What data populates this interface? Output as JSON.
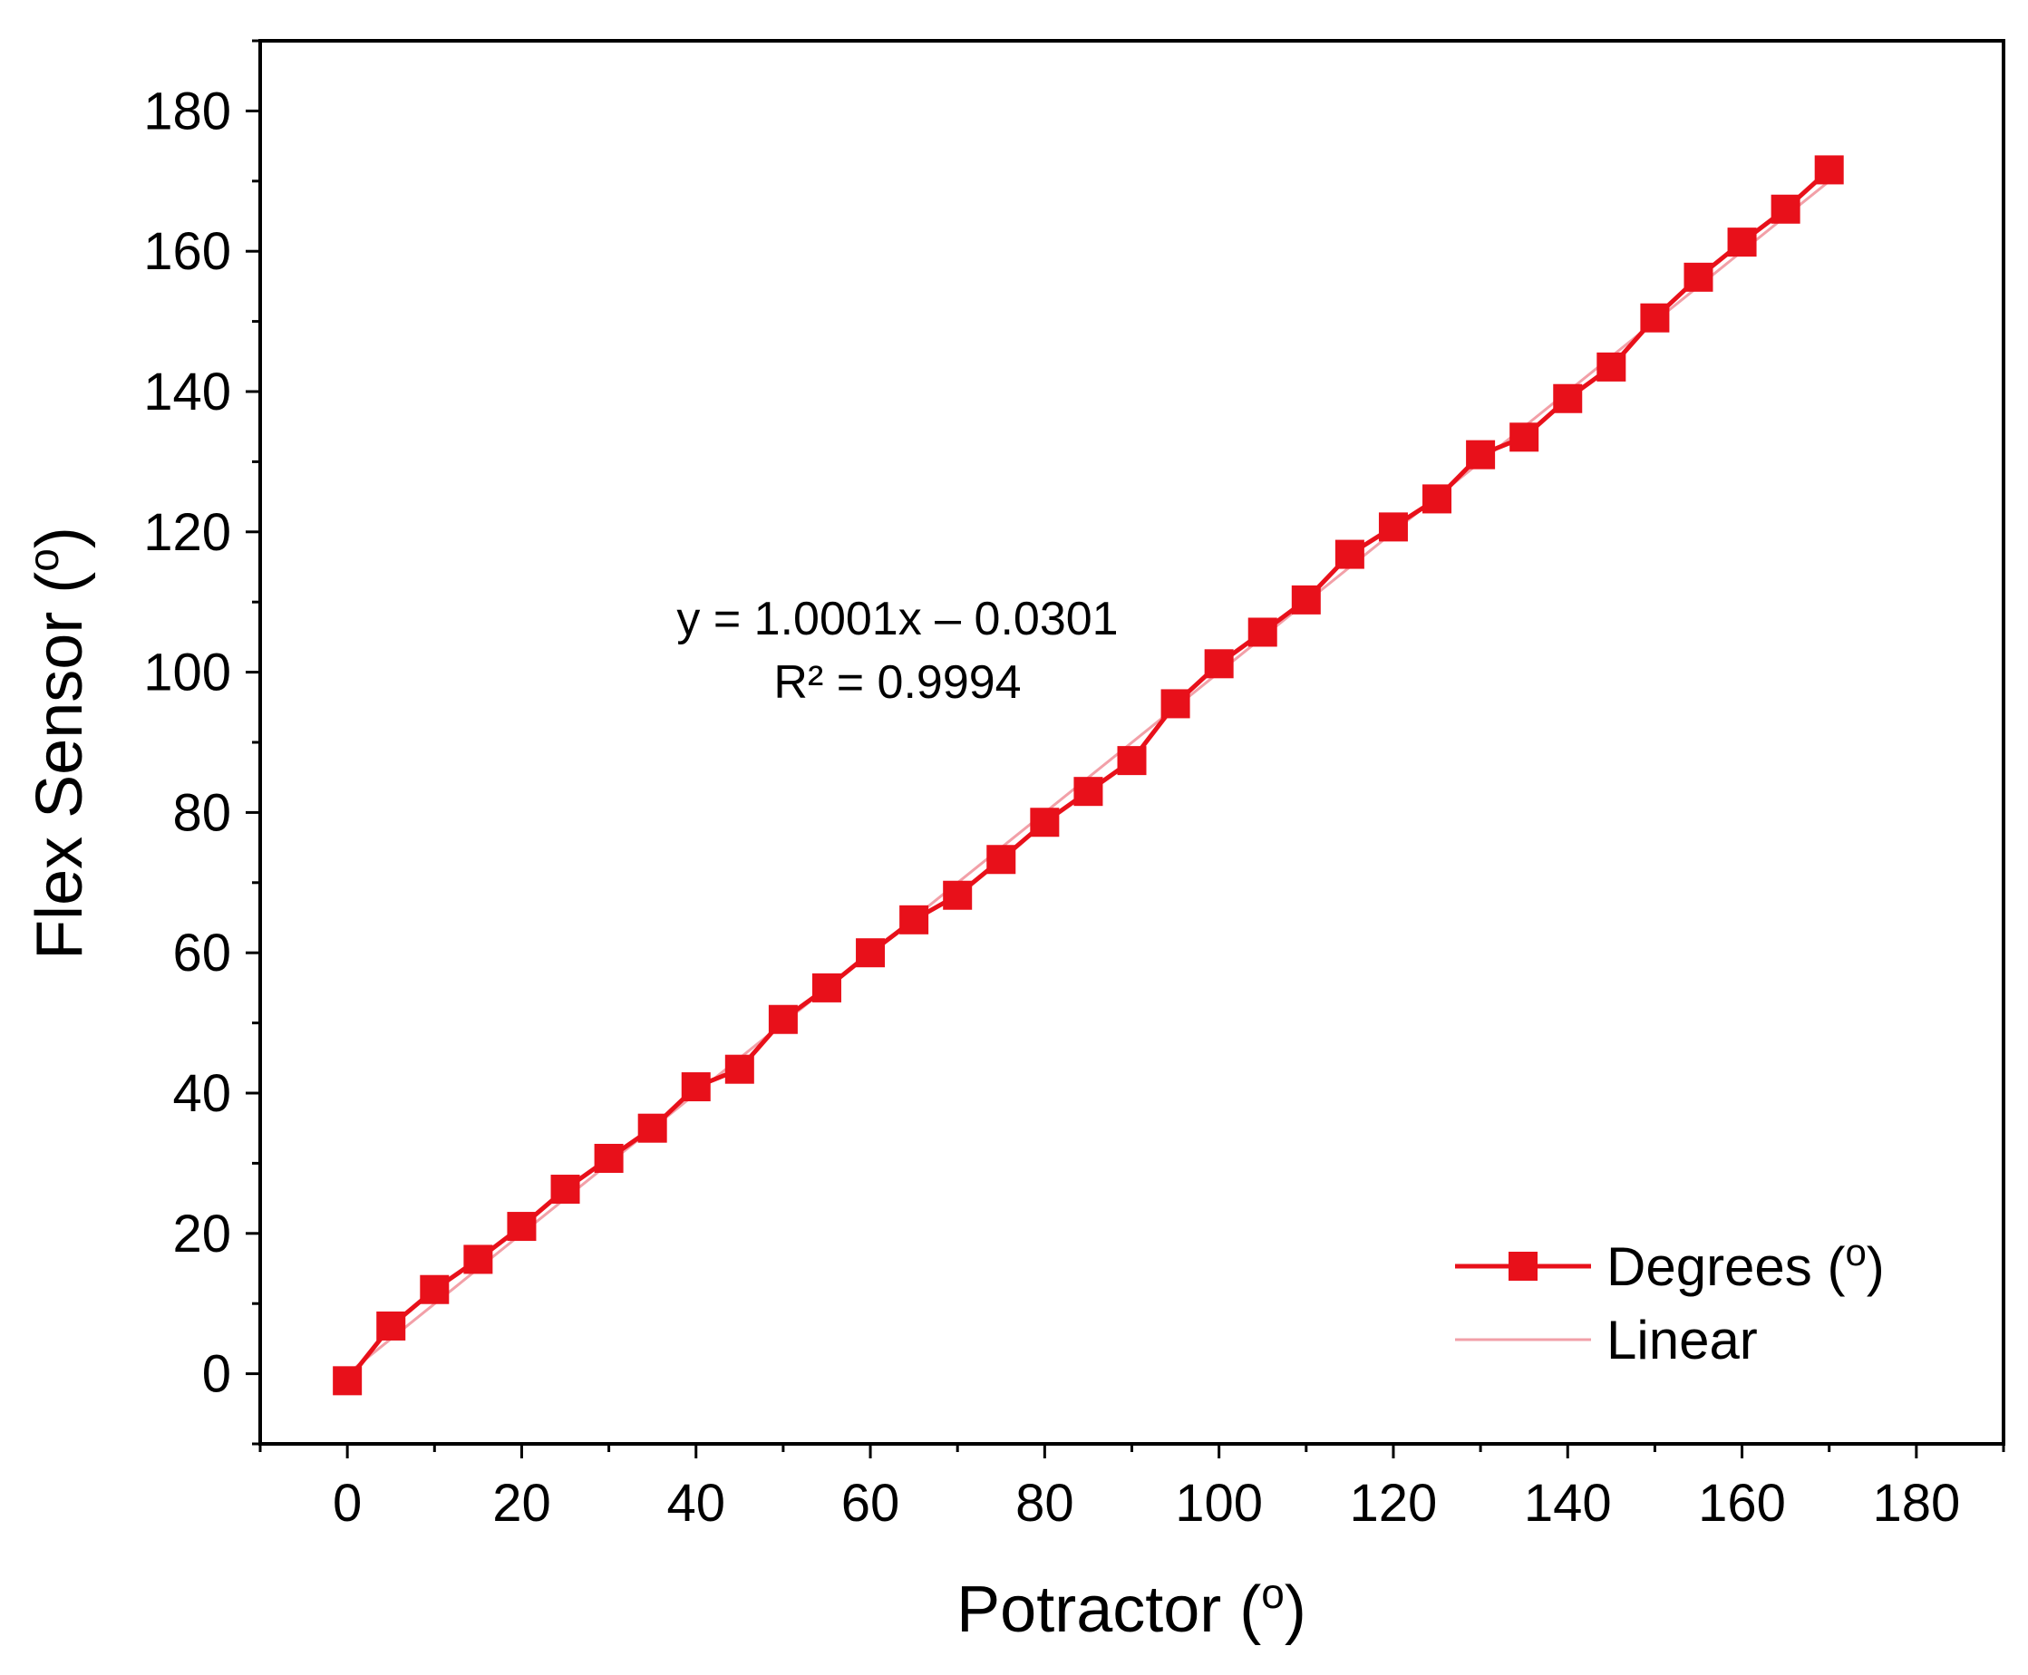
{
  "chart_data": {
    "type": "scatter",
    "xlabel": "Potractor (",
    "xlabel_sup": "o",
    "xlabel_close": ")",
    "ylabel": "Flex Sensor (",
    "ylabel_sup": "o",
    "ylabel_close": ")",
    "xlim": [
      -10,
      190
    ],
    "ylim": [
      -10,
      190
    ],
    "x_ticks": [
      0,
      20,
      40,
      60,
      80,
      100,
      120,
      140,
      160,
      180
    ],
    "y_ticks": [
      0,
      20,
      40,
      60,
      80,
      100,
      120,
      140,
      160,
      180
    ],
    "x_tick_labels": [
      "0",
      "20",
      "40",
      "60",
      "80",
      "100",
      "120",
      "140",
      "160",
      "180"
    ],
    "y_tick_labels": [
      "0",
      "20",
      "40",
      "60",
      "80",
      "100",
      "120",
      "140",
      "160",
      "180"
    ],
    "grid": false,
    "series": [
      {
        "name": "Degrees (",
        "name_sup": "o",
        "name_close": ")",
        "marker": "square",
        "color": "#e8101a",
        "x": [
          0,
          5,
          10,
          15,
          20,
          25,
          30,
          35,
          40,
          45,
          50,
          55,
          60,
          65,
          70,
          75,
          80,
          85,
          90,
          95,
          100,
          105,
          110,
          115,
          120,
          125,
          130,
          135,
          140,
          145,
          150,
          155,
          160,
          165,
          170
        ],
        "y": [
          -1,
          6.8,
          12,
          16.3,
          21,
          26.3,
          30.7,
          35,
          40.9,
          43.4,
          50.5,
          55,
          60,
          64.7,
          68.2,
          73.3,
          78.6,
          83,
          87.4,
          95.5,
          101.2,
          105.7,
          110.3,
          116.8,
          120.7,
          124.7,
          131,
          133.5,
          139,
          143.5,
          150.5,
          156.3,
          161.3,
          166,
          171.6
        ]
      }
    ],
    "fit": {
      "name": "Linear",
      "color": "#f2a0a8",
      "slope": 1.0001,
      "intercept": -0.0301,
      "x_range": [
        0,
        170
      ],
      "equation": "y = 1.0001x – 0.0301",
      "r_squared": "R² = 0.9994"
    },
    "legend_position": "bottom-right"
  }
}
